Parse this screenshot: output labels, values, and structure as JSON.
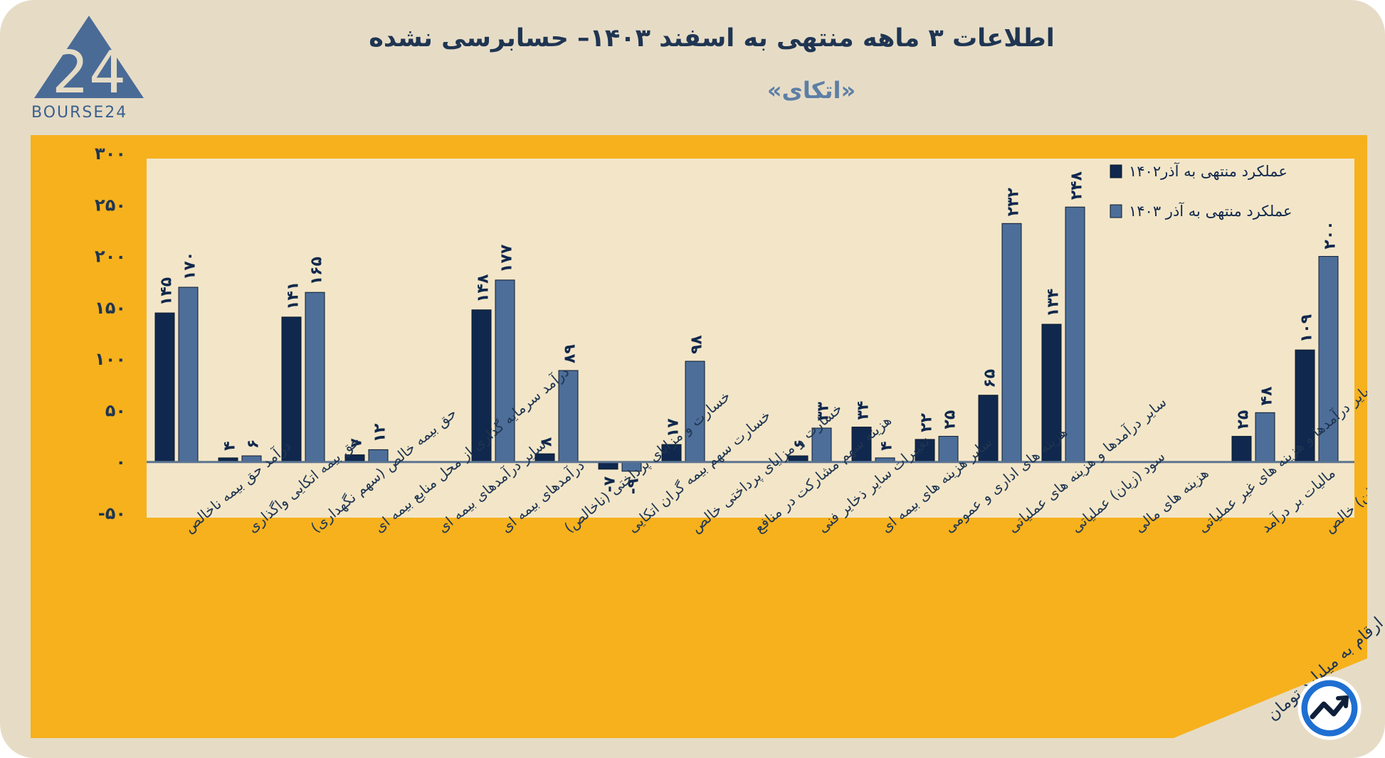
{
  "header": {
    "title": "اطلاعات ۳ ماهه منتهی به اسفند  ۱۴۰۳– حسابرسی نشده",
    "subtitle": "«اتکای»"
  },
  "logo": {
    "text": "BOURSE24",
    "mark": "24"
  },
  "footer": {
    "unit_note": "ارقام به میلیارد تومان"
  },
  "icons": {
    "brand": "trend-arrow-icon"
  },
  "colors": {
    "background": "#e6dcc6",
    "panel": "#f6b11d",
    "plot_area": "#f3e6c8",
    "series_1402": "#10284d",
    "series_1403": "#4d6e99",
    "title": "#1f3552",
    "subtitle": "#5d7fa5"
  },
  "chart_data": {
    "type": "bar",
    "title": "",
    "xlabel": "",
    "ylabel": "",
    "ylim": [
      -50,
      300
    ],
    "yticks": [
      "-۵۰",
      "۰",
      "۵۰",
      "۱۰۰",
      "۱۵۰",
      "۲۰۰",
      "۲۵۰",
      "۳۰۰"
    ],
    "ytick_values": [
      -50,
      0,
      50,
      100,
      150,
      200,
      250,
      300
    ],
    "grid": false,
    "legend_position": "top-right",
    "categories": [
      "درآمد حق بیمه ناخالص",
      "حق بیمه اتکایی واگذاری",
      "حق بیمه خالص (سهم نگهداری)",
      "درآمد سرمایه گذاری از محل منابع بیمه ای",
      "سایر درآمدهای بیمه ای",
      "درآمدهای بیمه ای",
      "خسارت و مزایای پرداختی (ناخالص)",
      "خسارت سهم بیمه گران اتکایی",
      "خسارت و مزایای پرداختی خالص",
      "هزینه سهم مشارکت در منافع",
      "تغییرات سایر ذخایر فنی",
      "سایر هزینه های بیمه ای",
      "هزینه های اداری و عمومی",
      "سایر درآمدها و هزینه های عملیاتی",
      "سود (زیان) عملیاتی",
      "هزینه های مالی",
      "سایر درآمدها و هزینه های غیر عملیاتی",
      "مالیات بر درآمد",
      "سود (زیان) خالص"
    ],
    "series": [
      {
        "name": "عملکرد منتهی به آذر۱۴۰۲",
        "values": [
          145,
          4,
          141,
          7,
          0,
          148,
          8,
          -7,
          17,
          0,
          6,
          34,
          22,
          65,
          134,
          0,
          0,
          25,
          109
        ],
        "labels": [
          "۱۴۵",
          "۴",
          "۱۴۱",
          "۷",
          "",
          "۱۴۸",
          "۸",
          "-۷",
          "۱۷",
          "",
          "۶",
          "۳۴",
          "۲۲",
          "۶۵",
          "۱۳۴",
          "",
          "",
          "۲۵",
          "۱۰۹"
        ]
      },
      {
        "name": "عملکرد منتهی به آذر ۱۴۰۳",
        "values": [
          170,
          6,
          165,
          12,
          0,
          177,
          89,
          -9,
          98,
          0,
          33,
          4,
          25,
          232,
          248,
          0,
          0,
          48,
          200
        ],
        "labels": [
          "۱۷۰",
          "۶",
          "۱۶۵",
          "۱۲",
          "",
          "۱۷۷",
          "۸۹",
          "-۹",
          "۹۸",
          "",
          "۳۳",
          "۴",
          "۲۵",
          "۲۳۲",
          "۲۴۸",
          "",
          "",
          "۴۸",
          "۲۰۰"
        ]
      }
    ]
  }
}
